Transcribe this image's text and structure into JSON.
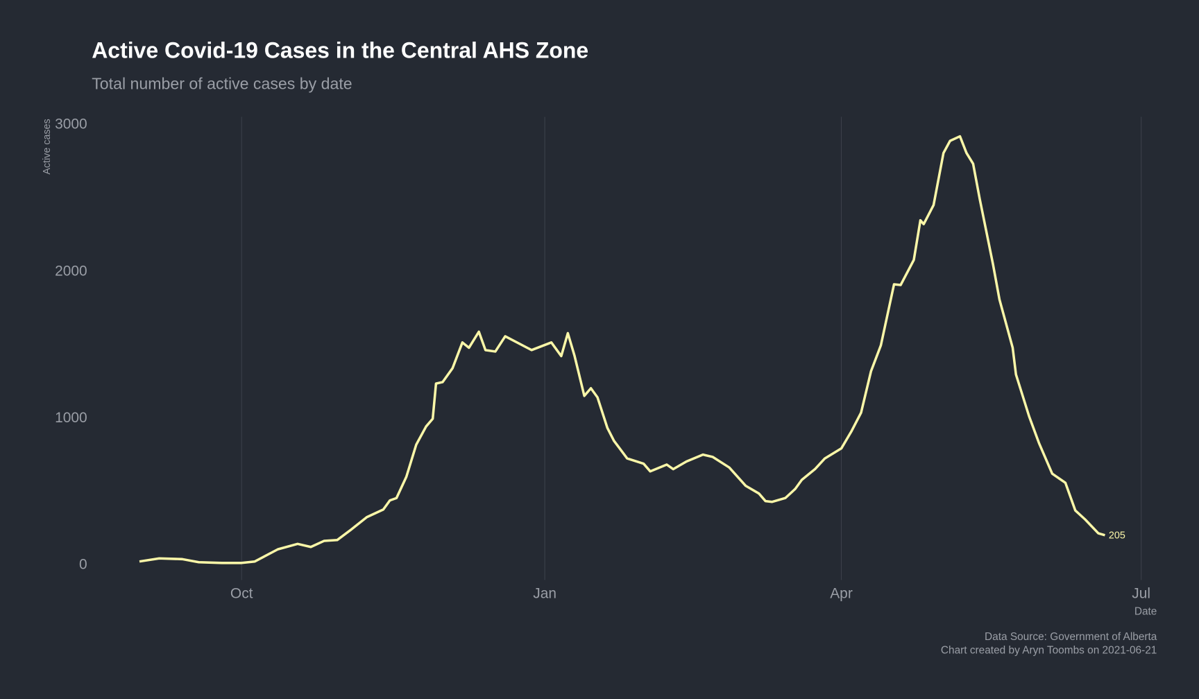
{
  "chart_data": {
    "type": "line",
    "title": "Active Covid-19 Cases in the Central AHS Zone",
    "subtitle": "Total number of active cases by date",
    "x_label": "Date",
    "y_label": "Active cases",
    "captions": [
      "Data Source: Government of Alberta",
      "Chart created by Aryn Toombs on 2021-06-21"
    ],
    "x": [
      -31,
      -25,
      -18,
      -13,
      -6,
      0,
      4,
      11,
      17,
      21,
      25,
      29,
      33,
      38,
      43,
      45,
      47,
      50,
      53,
      56,
      58,
      59,
      61,
      64,
      67,
      69,
      72,
      74,
      77,
      80,
      88,
      94,
      97,
      99,
      101,
      104,
      106,
      108,
      111,
      113,
      117,
      122,
      124,
      129,
      131,
      135,
      140,
      143,
      148,
      153,
      157,
      159,
      161,
      165,
      168,
      170,
      174,
      177,
      182,
      185,
      188,
      191,
      194,
      198,
      200,
      204,
      206,
      207,
      210,
      213,
      215,
      218,
      220,
      222,
      224,
      228,
      230,
      234,
      235,
      239,
      242,
      246,
      250,
      253,
      256,
      260,
      262
    ],
    "series": [
      {
        "name": "Active cases",
        "color": "#fbf7a8",
        "values": [
          26,
          47,
          42,
          21,
          16,
          16,
          26,
          109,
          146,
          125,
          166,
          172,
          239,
          328,
          380,
          442,
          458,
          603,
          822,
          946,
          998,
          1238,
          1248,
          1342,
          1518,
          1482,
          1591,
          1466,
          1456,
          1560,
          1466,
          1518,
          1425,
          1581,
          1430,
          1154,
          1206,
          1144,
          936,
          848,
          728,
          692,
          640,
          686,
          655,
          707,
          754,
          738,
          666,
          541,
          489,
          437,
          432,
          458,
          520,
          582,
          655,
          728,
          796,
          910,
          1040,
          1321,
          1498,
          1914,
          1909,
          2080,
          2350,
          2324,
          2454,
          2808,
          2891,
          2922,
          2808,
          2735,
          2496,
          2054,
          1810,
          1482,
          1300,
          1014,
          832,
          624,
          562,
          374,
          312,
          218,
          205
        ]
      }
    ],
    "xlim": [
      -40,
      275
    ],
    "xticks": [
      {
        "value": 0,
        "label": "Oct"
      },
      {
        "value": 92,
        "label": "Jan"
      },
      {
        "value": 182,
        "label": "Apr"
      },
      {
        "value": 273,
        "label": "Jul"
      }
    ],
    "ylim": [
      -100,
      3070
    ],
    "yticks": [
      0,
      1000,
      2000,
      3000
    ],
    "grid": true
  }
}
